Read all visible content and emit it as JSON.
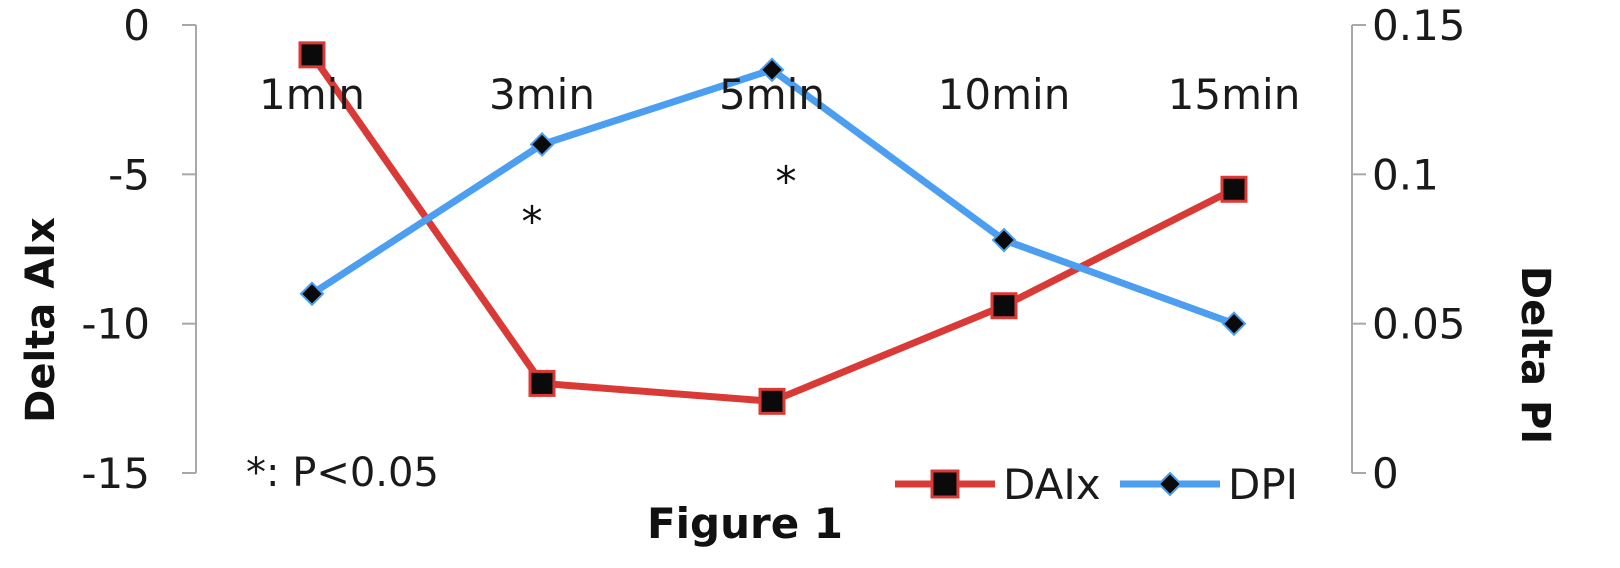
{
  "chart_data": {
    "type": "line",
    "categories": [
      "1min",
      "3min",
      "5min",
      "10min",
      "15min"
    ],
    "ylabel": "Delta AIx",
    "y2label": "Delta PI",
    "ylim": [
      -15,
      0
    ],
    "y2lim": [
      0,
      0.15
    ],
    "yticks": [
      "0",
      "-5",
      "-10",
      "-15"
    ],
    "y2ticks": [
      "0.15",
      "0.1",
      "0.05",
      "0"
    ],
    "series": [
      {
        "name": "DAIx",
        "axis": "left",
        "color": "#d93a36",
        "marker": "square",
        "values": [
          -1,
          -12,
          -12.6,
          -9.4,
          -5.5
        ]
      },
      {
        "name": "DPI",
        "axis": "right",
        "color": "#4c9ff0",
        "marker": "diamond",
        "values": [
          0.06,
          0.11,
          0.135,
          0.078,
          0.05
        ]
      }
    ],
    "annotations": [
      {
        "text": "*",
        "category_index": 1
      },
      {
        "text": "*",
        "category_index": 2
      }
    ],
    "note": "*: P<0.05",
    "caption": "Figure 1",
    "legend_position": "bottom-right",
    "grid": false
  }
}
